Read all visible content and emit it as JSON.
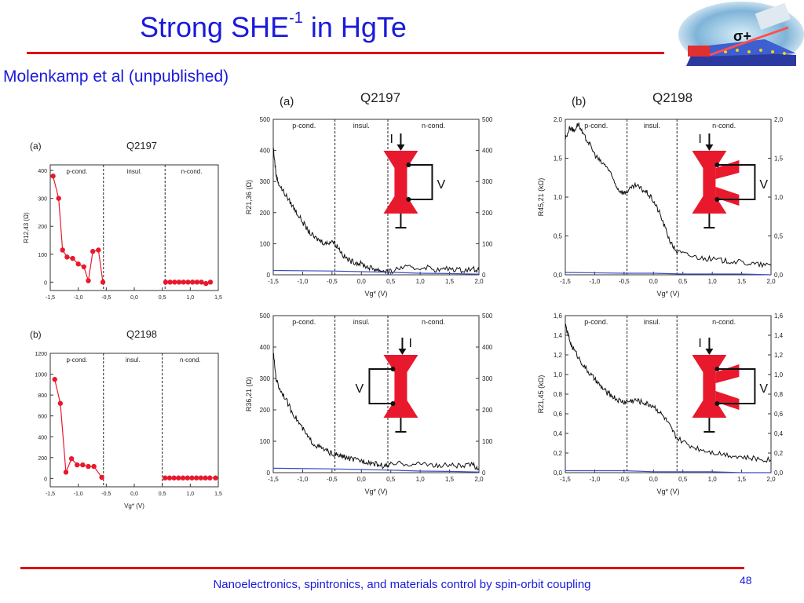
{
  "slide": {
    "title_main": "Strong SHE",
    "title_sup": "-1",
    "title_end": " in HgTe",
    "subtitle": "Molenkamp et al (unpublished)",
    "footer": "Nanoelectronics, spintronics, and materials control by spin-orbit coupling",
    "page_number": "48",
    "logo_label": "σ+"
  },
  "chart_data": [
    {
      "type": "scatter",
      "panel_label": "(a)",
      "title": "Q2197",
      "ylabel": "R12,43 (Ω)",
      "xlabel": "",
      "xlim": [
        -1.5,
        1.5
      ],
      "ylim": [
        -30,
        420
      ],
      "xticks": [
        "-1,5",
        "-1,0",
        "-0,5",
        "0,0",
        "0,5",
        "1,0",
        "1,5"
      ],
      "yticks": [
        0,
        100,
        200,
        300,
        400
      ],
      "regions": [
        "p-cond.",
        "insul.",
        "n-cond."
      ],
      "dividers": [
        -0.55,
        0.55
      ],
      "series": [
        {
          "x": [
            -1.45,
            -1.35,
            -1.28,
            -1.2,
            -1.1,
            -1.0,
            -0.9,
            -0.82,
            -0.74,
            -0.64,
            -0.56
          ],
          "y": [
            380,
            300,
            115,
            90,
            85,
            65,
            55,
            5,
            110,
            115,
            0
          ],
          "color": "#e8192c"
        },
        {
          "x": [
            0.56,
            0.64,
            0.72,
            0.8,
            0.88,
            0.96,
            1.04,
            1.12,
            1.2,
            1.28,
            1.36
          ],
          "y": [
            0,
            0,
            0,
            0,
            0,
            0,
            0,
            0,
            0,
            -5,
            0
          ],
          "color": "#e8192c"
        }
      ]
    },
    {
      "type": "scatter",
      "panel_label": "(b)",
      "title": "Q2198",
      "ylabel": "",
      "xlabel": "Vg* (V)",
      "xlim": [
        -1.5,
        1.5
      ],
      "ylim": [
        -80,
        1200
      ],
      "xticks": [
        "-1,5",
        "-1,0",
        "-0,5",
        "0,0",
        "0,5",
        "1,0",
        "1,5"
      ],
      "yticks": [
        0,
        200,
        400,
        600,
        800,
        1000,
        1200
      ],
      "regions": [
        "p-cond.",
        "insul.",
        "n-cond."
      ],
      "dividers": [
        -0.55,
        0.5
      ],
      "series": [
        {
          "x": [
            -1.42,
            -1.32,
            -1.22,
            -1.12,
            -1.02,
            -0.92,
            -0.82,
            -0.72,
            -0.58
          ],
          "y": [
            950,
            720,
            60,
            190,
            130,
            130,
            115,
            115,
            10
          ],
          "color": "#e8192c"
        },
        {
          "x": [
            0.55,
            0.63,
            0.71,
            0.79,
            0.87,
            0.95,
            1.03,
            1.11,
            1.19,
            1.27,
            1.35,
            1.45
          ],
          "y": [
            5,
            5,
            5,
            5,
            5,
            5,
            5,
            5,
            5,
            5,
            5,
            5
          ],
          "color": "#e8192c"
        }
      ]
    },
    {
      "type": "line",
      "panel_label": "(a)",
      "title": "Q2197",
      "ylabel": "R21,36 (Ω)",
      "xlabel": "Vg* (V)",
      "xlim": [
        -1.5,
        2.0
      ],
      "ylim": [
        0,
        500
      ],
      "xticks": [
        "-1,5",
        "-1,0",
        "-0,5",
        "0,0",
        "0,5",
        "1,0",
        "1,5",
        "2,0"
      ],
      "yticks": [
        0,
        100,
        200,
        300,
        400,
        500
      ],
      "regions": [
        "p-cond.",
        "insul.",
        "n-cond."
      ],
      "dividers": [
        -0.45,
        0.45
      ],
      "device_labels": {
        "current": "I",
        "voltage": "V"
      },
      "series": [
        {
          "x": [
            -1.5,
            -1.45,
            -1.4,
            -1.3,
            -1.2,
            -1.1,
            -1.0,
            -0.9,
            -0.8,
            -0.7,
            -0.6,
            -0.5,
            -0.4,
            -0.3,
            -0.2,
            -0.1,
            0.0,
            0.1,
            0.2,
            0.3,
            0.4,
            0.5,
            0.7,
            0.9,
            1.1,
            1.3,
            1.5,
            1.7,
            1.9,
            2.0
          ],
          "y": [
            410,
            320,
            290,
            260,
            230,
            200,
            170,
            140,
            120,
            110,
            100,
            110,
            90,
            60,
            45,
            40,
            35,
            25,
            20,
            15,
            12,
            10,
            25,
            20,
            25,
            15,
            20,
            15,
            20,
            15
          ],
          "color": "#111111"
        },
        {
          "x": [
            -1.5,
            -0.5,
            0.0,
            0.5,
            1.0,
            1.5,
            2.0
          ],
          "y": [
            14,
            12,
            10,
            8,
            5,
            4,
            2
          ],
          "color": "#3a4cc0"
        }
      ]
    },
    {
      "type": "line",
      "panel_label": "(b)",
      "title": "Q2198",
      "ylabel": "R45,21 (kΩ)",
      "xlabel": "Vg* (V)",
      "xlim": [
        -1.5,
        2.0
      ],
      "ylim": [
        0,
        2.0
      ],
      "xticks": [
        "-1,5",
        "-1,0",
        "-0,5",
        "0,0",
        "0,5",
        "1,0",
        "1,5",
        "2,0"
      ],
      "yticks": [
        0,
        0.5,
        1.0,
        1.5,
        2.0
      ],
      "ytick_labels": [
        "0,0",
        "0,5",
        "1,0",
        "1,5",
        "2,0"
      ],
      "regions": [
        "p-cond.",
        "insul.",
        "n-cond."
      ],
      "dividers": [
        -0.45,
        0.4
      ],
      "device_labels": {
        "current": "I",
        "voltage": "V"
      },
      "series": [
        {
          "x": [
            -1.5,
            -1.42,
            -1.35,
            -1.28,
            -1.2,
            -1.1,
            -1.0,
            -0.9,
            -0.8,
            -0.7,
            -0.6,
            -0.5,
            -0.4,
            -0.3,
            -0.2,
            -0.1,
            0.0,
            0.1,
            0.2,
            0.3,
            0.4,
            0.6,
            0.8,
            1.0,
            1.2,
            1.4,
            1.6,
            1.8,
            2.0
          ],
          "y": [
            1.75,
            1.9,
            1.85,
            1.95,
            1.8,
            1.7,
            1.55,
            1.45,
            1.4,
            1.25,
            1.1,
            1.05,
            1.1,
            1.15,
            1.1,
            1.05,
            0.95,
            0.8,
            0.6,
            0.4,
            0.3,
            0.25,
            0.22,
            0.2,
            0.18,
            0.17,
            0.15,
            0.13,
            0.12
          ],
          "color": "#111111"
        },
        {
          "x": [
            -1.5,
            -0.5,
            0.0,
            0.5,
            1.0,
            1.5,
            2.0
          ],
          "y": [
            0.03,
            0.02,
            0.02,
            0.01,
            0.01,
            0.01,
            0.0
          ],
          "color": "#3a4cc0"
        }
      ]
    },
    {
      "type": "line",
      "panel_label": "",
      "title": "",
      "ylabel": "R36,21 (Ω)",
      "xlabel": "Vg* (V)",
      "xlim": [
        -1.5,
        2.0
      ],
      "ylim": [
        0,
        500
      ],
      "xticks": [
        "-1,5",
        "-1,0",
        "-0,5",
        "0,0",
        "0,5",
        "1,0",
        "1,5",
        "2,0"
      ],
      "yticks": [
        0,
        100,
        200,
        300,
        400,
        500
      ],
      "regions": [
        "p-cond.",
        "insul.",
        "n-cond."
      ],
      "dividers": [
        -0.45,
        0.45
      ],
      "device_labels": {
        "current": "I",
        "voltage": "V"
      },
      "series": [
        {
          "x": [
            -1.5,
            -1.45,
            -1.4,
            -1.3,
            -1.2,
            -1.1,
            -1.0,
            -0.9,
            -0.8,
            -0.7,
            -0.6,
            -0.5,
            -0.4,
            -0.3,
            -0.2,
            -0.1,
            0.0,
            0.1,
            0.2,
            0.3,
            0.4,
            0.5,
            0.7,
            0.9,
            1.1,
            1.3,
            1.5,
            1.7,
            1.9,
            2.0
          ],
          "y": [
            380,
            300,
            270,
            240,
            200,
            170,
            140,
            110,
            90,
            80,
            70,
            60,
            55,
            50,
            45,
            40,
            38,
            35,
            30,
            25,
            20,
            25,
            30,
            25,
            30,
            20,
            25,
            20,
            25,
            10
          ],
          "color": "#111111"
        },
        {
          "x": [
            -1.5,
            -0.5,
            0.0,
            0.5,
            1.0,
            1.5,
            2.0
          ],
          "y": [
            14,
            12,
            10,
            8,
            5,
            4,
            2
          ],
          "color": "#3a4cc0"
        }
      ]
    },
    {
      "type": "line",
      "panel_label": "",
      "title": "",
      "ylabel": "R21,45 (kΩ)",
      "xlabel": "Vg* (V)",
      "xlim": [
        -1.5,
        2.0
      ],
      "ylim": [
        0,
        1.6
      ],
      "xticks": [
        "-1,5",
        "-1,0",
        "-0,5",
        "0,0",
        "0,5",
        "1,0",
        "1,5",
        "2,0"
      ],
      "yticks": [
        0,
        0.2,
        0.4,
        0.6,
        0.8,
        1.0,
        1.2,
        1.4,
        1.6
      ],
      "ytick_labels": [
        "0,0",
        "0,2",
        "0,4",
        "0,6",
        "0,8",
        "1,0",
        "1,2",
        "1,4",
        "1,6"
      ],
      "regions": [
        "p-cond.",
        "insul.",
        "n-cond."
      ],
      "dividers": [
        -0.45,
        0.4
      ],
      "device_labels": {
        "current": "I",
        "voltage": "V"
      },
      "series": [
        {
          "x": [
            -1.5,
            -1.45,
            -1.4,
            -1.3,
            -1.2,
            -1.1,
            -1.0,
            -0.9,
            -0.8,
            -0.7,
            -0.6,
            -0.5,
            -0.4,
            -0.3,
            -0.2,
            -0.1,
            0.0,
            0.1,
            0.2,
            0.3,
            0.4,
            0.6,
            0.8,
            1.0,
            1.2,
            1.4,
            1.6,
            1.8,
            2.0
          ],
          "y": [
            1.5,
            1.4,
            1.3,
            1.2,
            1.1,
            1.02,
            0.95,
            0.88,
            0.82,
            0.78,
            0.74,
            0.72,
            0.73,
            0.74,
            0.72,
            0.7,
            0.68,
            0.62,
            0.55,
            0.45,
            0.35,
            0.28,
            0.24,
            0.21,
            0.19,
            0.17,
            0.15,
            0.14,
            0.13
          ],
          "color": "#111111"
        },
        {
          "x": [
            -1.5,
            -0.5,
            0.0,
            0.5,
            1.0,
            1.5,
            2.0
          ],
          "y": [
            0.02,
            0.02,
            0.01,
            0.01,
            0.01,
            0.0,
            0.0
          ],
          "color": "#3a4cc0"
        }
      ]
    }
  ]
}
